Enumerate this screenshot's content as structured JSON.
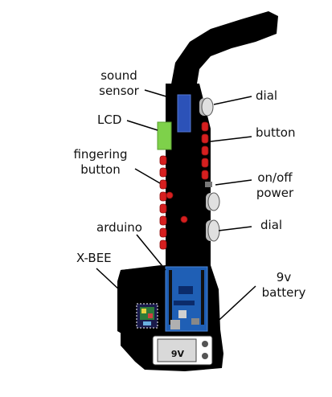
{
  "labels": {
    "sound_sensor_line1": "sound",
    "sound_sensor_line2": "sensor",
    "lcd": "LCD",
    "fingering_line1": "fingering",
    "fingering_line2": "button",
    "arduino": "arduino",
    "xbee": "X-BEE",
    "dial_top": "dial",
    "button": "button",
    "onoff_line1": "on/off",
    "onoff_line2": "power",
    "dial_bottom": "dial",
    "battery_line1": "9v",
    "battery_line2": "battery",
    "battery_case": "9V"
  },
  "colors": {
    "body": "#000000",
    "sensor": "#2c52b8",
    "lcd": "#7ed14a",
    "button_red": "#d61f1f",
    "arduino_board": "#1f5fb5",
    "xbee_board": "#1a1a4a",
    "battery_case": "#d9d9d9",
    "dial_gray": "#9a9a9a"
  }
}
